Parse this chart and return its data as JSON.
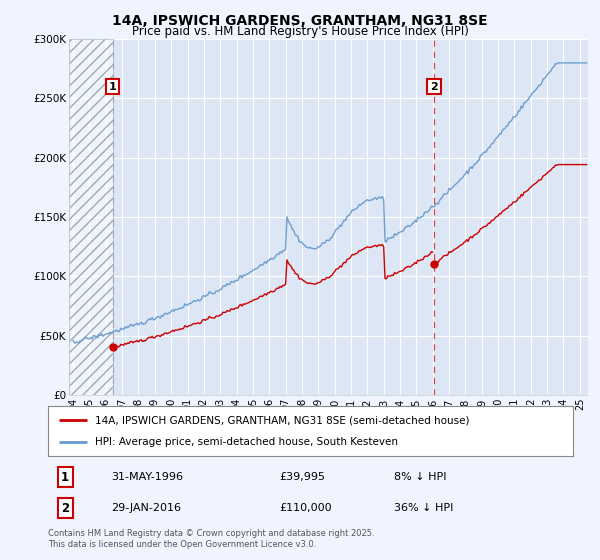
{
  "title_line1": "14A, IPSWICH GARDENS, GRANTHAM, NG31 8SE",
  "title_line2": "Price paid vs. HM Land Registry's House Price Index (HPI)",
  "legend_line1": "14A, IPSWICH GARDENS, GRANTHAM, NG31 8SE (semi-detached house)",
  "legend_line2": "HPI: Average price, semi-detached house, South Kesteven",
  "note1_date": "31-MAY-1996",
  "note1_price": "£39,995",
  "note1_hpi": "8% ↓ HPI",
  "note2_date": "29-JAN-2016",
  "note2_price": "£110,000",
  "note2_hpi": "36% ↓ HPI",
  "copyright": "Contains HM Land Registry data © Crown copyright and database right 2025.\nThis data is licensed under the Open Government Licence v3.0.",
  "sale1_year": 1996.42,
  "sale1_price": 39995,
  "sale2_year": 2016.08,
  "sale2_price": 110000,
  "ylim": [
    0,
    300000
  ],
  "xlim_start": 1993.75,
  "xlim_end": 2025.5,
  "bg_color": "#f0f4ff",
  "plot_bg": "#dce6f5",
  "red_line_color": "#cc0000",
  "blue_line_color": "#6699cc",
  "grid_color": "#ffffff",
  "vline1_color": "#aaaaaa",
  "vline2_color": "#cc0000",
  "hpi_seed": 42,
  "red_noise_seed": 7
}
